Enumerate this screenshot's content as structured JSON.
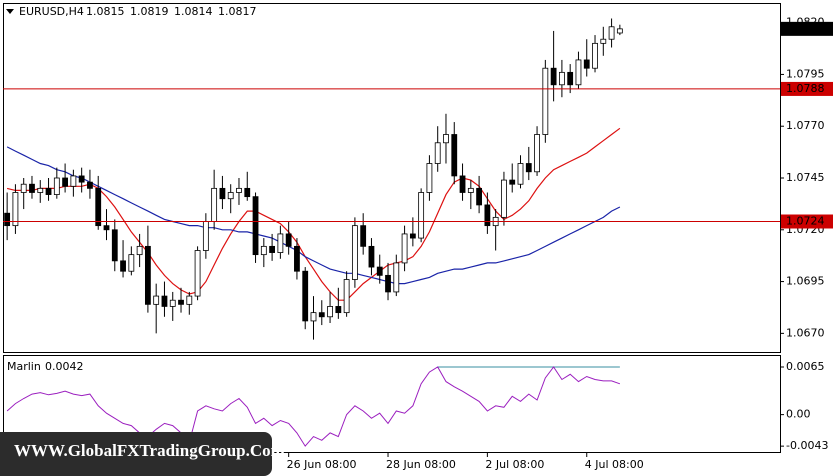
{
  "chart_data": [
    {
      "type": "candlestick",
      "title": "EURUSD,H4",
      "header_values": [
        1.0815,
        1.0819,
        1.0814,
        1.0817
      ],
      "categories": [
        null,
        null,
        null,
        null,
        null,
        null,
        null,
        null,
        null,
        null,
        null,
        null,
        null,
        null,
        null,
        null,
        null,
        null,
        null,
        null,
        null,
        null,
        null,
        null,
        null,
        null,
        null,
        null,
        null,
        null,
        null,
        null,
        null,
        null,
        "26 Jun 08:00",
        null,
        null,
        null,
        null,
        null,
        null,
        null,
        null,
        null,
        null,
        null,
        "28 Jun 08:00",
        null,
        null,
        null,
        null,
        null,
        null,
        null,
        null,
        null,
        null,
        null,
        "2 Jul 08:00",
        null,
        null,
        null,
        null,
        null,
        null,
        null,
        null,
        null,
        null,
        null,
        "4 Jul 08:00",
        null,
        null,
        null,
        null
      ],
      "open": [
        1.0728,
        1.0722,
        1.0738,
        1.0742,
        1.0738,
        1.074,
        1.0737,
        1.0745,
        1.0741,
        1.0746,
        1.0743,
        1.074,
        1.0722,
        1.072,
        1.0705,
        1.07,
        1.0708,
        1.0712,
        1.0684,
        1.0688,
        1.0683,
        1.0686,
        1.0684,
        1.0688,
        1.071,
        1.0724,
        1.074,
        1.0735,
        1.0738,
        1.074,
        1.0736,
        1.0708,
        1.0712,
        1.0709,
        1.0718,
        1.0712,
        1.07,
        1.0676,
        1.068,
        1.0678,
        1.0683,
        1.068,
        1.0696,
        1.0722,
        1.0712,
        1.0702,
        1.0698,
        1.069,
        1.0704,
        1.0718,
        1.0716,
        1.0738,
        1.0752,
        1.0762,
        1.0766,
        1.0746,
        1.0738,
        1.074,
        1.0732,
        1.0722,
        1.0726,
        1.0744,
        1.0742,
        1.0752,
        1.0748,
        1.0766,
        1.0798,
        1.079,
        1.0796,
        1.079,
        1.0802,
        1.0798,
        1.081,
        1.0812,
        1.0815
      ],
      "high": [
        1.0738,
        1.0742,
        1.0745,
        1.0746,
        1.0744,
        1.0745,
        1.075,
        1.0752,
        1.0749,
        1.075,
        1.0749,
        1.0746,
        1.073,
        1.0725,
        1.0715,
        1.0712,
        1.0718,
        1.0722,
        1.0694,
        1.0695,
        1.069,
        1.0692,
        1.069,
        1.0712,
        1.0728,
        1.0749,
        1.0746,
        1.0742,
        1.0745,
        1.0748,
        1.0738,
        1.0716,
        1.0718,
        1.0722,
        1.0724,
        1.0716,
        1.0702,
        1.0688,
        1.0686,
        1.069,
        1.0692,
        1.07,
        1.0726,
        1.0728,
        1.0716,
        1.0708,
        1.0704,
        1.0708,
        1.0722,
        1.0726,
        1.074,
        1.0756,
        1.077,
        1.0776,
        1.0772,
        1.0752,
        1.0744,
        1.0746,
        1.0738,
        1.073,
        1.0748,
        1.0752,
        1.0756,
        1.076,
        1.077,
        1.0802,
        1.0816,
        1.0802,
        1.08,
        1.0806,
        1.0812,
        1.0814,
        1.0818,
        1.0822,
        1.0819
      ],
      "low": [
        1.0715,
        1.0718,
        1.073,
        1.0735,
        1.0733,
        1.0734,
        1.0735,
        1.0738,
        1.0736,
        1.0738,
        1.0735,
        1.072,
        1.0715,
        1.07,
        1.0697,
        1.0698,
        1.0702,
        1.068,
        1.067,
        1.0678,
        1.0676,
        1.068,
        1.0679,
        1.0686,
        1.0706,
        1.072,
        1.073,
        1.0728,
        1.0732,
        1.0734,
        1.0704,
        1.0702,
        1.0705,
        1.0706,
        1.0708,
        1.0696,
        1.0672,
        1.0667,
        1.0674,
        1.0675,
        1.0677,
        1.0678,
        1.0692,
        1.0708,
        1.0698,
        1.0694,
        1.0686,
        1.0688,
        1.07,
        1.0712,
        1.0714,
        1.0734,
        1.0748,
        1.0752,
        1.0742,
        1.0734,
        1.073,
        1.0728,
        1.0718,
        1.071,
        1.0722,
        1.0738,
        1.074,
        1.0744,
        1.0746,
        1.0762,
        1.0782,
        1.0784,
        1.0786,
        1.0788,
        1.0794,
        1.0796,
        1.0804,
        1.0808,
        1.0814
      ],
      "close": [
        1.0722,
        1.0738,
        1.0742,
        1.0738,
        1.074,
        1.0737,
        1.0745,
        1.0741,
        1.0746,
        1.0743,
        1.074,
        1.0722,
        1.072,
        1.0705,
        1.07,
        1.0708,
        1.0712,
        1.0684,
        1.0688,
        1.0683,
        1.0686,
        1.0684,
        1.0688,
        1.071,
        1.0724,
        1.074,
        1.0735,
        1.0738,
        1.074,
        1.0736,
        1.0708,
        1.0712,
        1.0709,
        1.0718,
        1.0712,
        1.07,
        1.0676,
        1.068,
        1.0678,
        1.0683,
        1.068,
        1.0696,
        1.0722,
        1.0712,
        1.0702,
        1.0698,
        1.069,
        1.0704,
        1.0718,
        1.0716,
        1.0738,
        1.0752,
        1.0762,
        1.0766,
        1.0746,
        1.0738,
        1.074,
        1.0732,
        1.0722,
        1.0726,
        1.0744,
        1.0742,
        1.0752,
        1.0748,
        1.0766,
        1.0798,
        1.079,
        1.0796,
        1.079,
        1.0802,
        1.0798,
        1.081,
        1.0812,
        1.0818,
        1.0817
      ],
      "lines": [
        {
          "color": "#dd1111",
          "values": [
            1.074,
            1.0739,
            1.0739,
            1.0739,
            1.074,
            1.074,
            1.074,
            1.0741,
            1.0741,
            1.0741,
            1.0742,
            1.074,
            1.0736,
            1.0731,
            1.0725,
            1.0719,
            1.0714,
            1.0709,
            1.0703,
            1.0698,
            1.0694,
            1.0691,
            1.0689,
            1.069,
            1.0695,
            1.0703,
            1.0711,
            1.0718,
            1.0724,
            1.0729,
            1.0729,
            1.0727,
            1.0725,
            1.0723,
            1.0719,
            1.0714,
            1.0707,
            1.0701,
            1.0695,
            1.069,
            1.0686,
            1.0686,
            1.069,
            1.0694,
            1.0697,
            1.07,
            1.0703,
            1.0704,
            1.0705,
            1.0707,
            1.0712,
            1.0719,
            1.0728,
            1.0737,
            1.0743,
            1.0745,
            1.0744,
            1.0741,
            1.0735,
            1.0729,
            1.0725,
            1.0727,
            1.073,
            1.0734,
            1.074,
            1.0745,
            1.0749,
            1.0751,
            1.0753,
            1.0755,
            1.0757,
            1.076,
            1.0763,
            1.0766,
            1.0769
          ]
        },
        {
          "color": "#1a24a8",
          "values": [
            1.076,
            1.0758,
            1.0756,
            1.0754,
            1.0752,
            1.0751,
            1.0749,
            1.0748,
            1.0746,
            1.0745,
            1.0743,
            1.0741,
            1.0739,
            1.0737,
            1.0735,
            1.0733,
            1.0731,
            1.0729,
            1.0727,
            1.0725,
            1.0724,
            1.0723,
            1.0722,
            1.0722,
            1.0721,
            1.0721,
            1.072,
            1.072,
            1.0719,
            1.0719,
            1.0718,
            1.0717,
            1.0716,
            1.0714,
            1.0712,
            1.071,
            1.0707,
            1.0705,
            1.0703,
            1.0701,
            1.07,
            1.0699,
            1.0699,
            1.0698,
            1.0697,
            1.0696,
            1.0695,
            1.0694,
            1.0694,
            1.0695,
            1.0696,
            1.0697,
            1.0699,
            1.07,
            1.0701,
            1.0701,
            1.0702,
            1.0703,
            1.0704,
            1.0704,
            1.0705,
            1.0706,
            1.0707,
            1.0708,
            1.071,
            1.0712,
            1.0714,
            1.0716,
            1.0718,
            1.072,
            1.0722,
            1.0724,
            1.0726,
            1.0729,
            1.0731
          ]
        }
      ],
      "levels": [
        {
          "value": 1.0788,
          "color": "#cc0000"
        },
        {
          "value": 1.0724,
          "color": "#cc0000"
        }
      ],
      "last_price": 1.0817,
      "bull_color": "#ffffff",
      "bear_color": "#000000",
      "ylim": [
        1.0661,
        1.0829
      ],
      "yticks": [
        {
          "value": 1.082,
          "label": "1.0820"
        },
        1.0795,
        {
          "value": 1.077,
          "label": "1.0770"
        },
        1.0745,
        {
          "value": 1.072,
          "label": "1.0720"
        },
        1.0695,
        {
          "value": 1.067,
          "label": "1.0670"
        }
      ]
    },
    {
      "type": "line",
      "title": "Marlin",
      "title_value": 0.0042,
      "color": "#9b1fbf",
      "values": [
        0.0005,
        0.0015,
        0.0022,
        0.0028,
        0.003,
        0.0027,
        0.0029,
        0.0032,
        0.0028,
        0.0026,
        0.0028,
        0.0012,
        0.0002,
        -0.0005,
        -0.0012,
        -0.0015,
        -0.0025,
        -0.003,
        -0.002,
        -0.0012,
        -0.0015,
        -0.0025,
        -0.0038,
        0.0005,
        0.0012,
        0.0008,
        0.0005,
        0.0015,
        0.0022,
        0.001,
        -0.0012,
        -0.0005,
        -0.0015,
        -0.0008,
        -0.0012,
        -0.0025,
        -0.0043,
        -0.003,
        -0.0035,
        -0.0025,
        -0.003,
        0.0,
        0.0012,
        0.0005,
        -0.0005,
        0.0002,
        -0.0012,
        0.0005,
        0.0002,
        0.0012,
        0.0042,
        0.0058,
        0.0065,
        0.0045,
        0.0038,
        0.0032,
        0.0025,
        0.0018,
        0.0005,
        0.0012,
        0.001,
        0.0025,
        0.0018,
        0.0028,
        0.002,
        0.005,
        0.0065,
        0.0048,
        0.0055,
        0.0045,
        0.0052,
        0.0048,
        0.0046,
        0.0046,
        0.0042
      ],
      "reference": {
        "value": 0.0065,
        "from": 52,
        "to": 74,
        "color": "#3a8fa0"
      },
      "ylim": [
        -0.0051,
        0.008
      ],
      "yticks": [
        0.0065,
        {
          "value": 0,
          "label": "0.00"
        },
        -0.0043
      ]
    }
  ],
  "watermark": "WWW.GlobalFXTradingGroup.Com"
}
